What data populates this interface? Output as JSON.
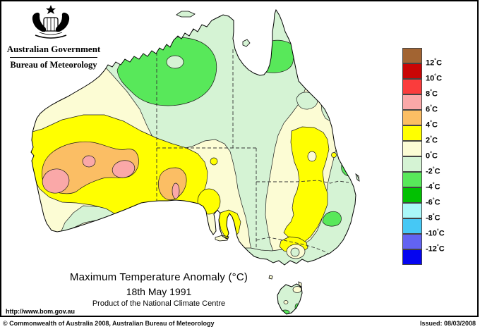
{
  "logo": {
    "government": "Australian Government",
    "bureau": "Bureau of Meteorology"
  },
  "legend": {
    "colors": [
      "#A26432",
      "#C90505",
      "#FA3C3C",
      "#FAA8A8",
      "#FBBE64",
      "#FFFF00",
      "#FCFCD4",
      "#D5F3D4",
      "#58E85A",
      "#02C002",
      "#AAF8F8",
      "#46C8F5",
      "#6263F2",
      "#0505F0"
    ],
    "labels": [
      "12°C",
      "10°C",
      "8°C",
      "6°C",
      "4°C",
      "2°C",
      "0°C",
      "-2°C",
      "-4°C",
      "-6°C",
      "-8°C",
      "-10°C",
      "-12°C"
    ]
  },
  "titles": {
    "main": "Maximum Temperature Anomaly (°C)",
    "date": "18th May 1991",
    "product": "Product of the National Climate Centre"
  },
  "footer": {
    "url": "http://www.bom.gov.au",
    "copyright": "© Commonwealth of Australia 2008, Australian Bureau of Meteorology",
    "issued": "Issued: 08/03/2008"
  },
  "map": {
    "region": "Australia",
    "palette": {
      "cream_0_2": "#FCFCD4",
      "palegreen_0_-2": "#D5F3D4",
      "green_-2_-4": "#58E85A",
      "yellow_2_4": "#FFFF00",
      "orange_4_6": "#FBBE64",
      "pink_6_8": "#FAA8A8"
    },
    "anomaly_regions": [
      {
        "area": "central Western Australia interior",
        "value": "+4 to +8 °C"
      },
      {
        "area": "Eucla coast (WA/SA border)",
        "value": "+4 to +8 °C"
      },
      {
        "area": "inland Queensland / New South Wales band",
        "value": "+2 to +4 °C"
      },
      {
        "area": "Kimberley / Top End (NT)",
        "value": "-2 to -4 °C"
      },
      {
        "area": "Cape York Peninsula base",
        "value": "-2 to -4 °C"
      },
      {
        "area": "central interior and Gulf country",
        "value": "0 to -2 °C"
      },
      {
        "area": "southeast coastal strip and Tasmania",
        "value": "0 to -2 °C"
      }
    ]
  }
}
